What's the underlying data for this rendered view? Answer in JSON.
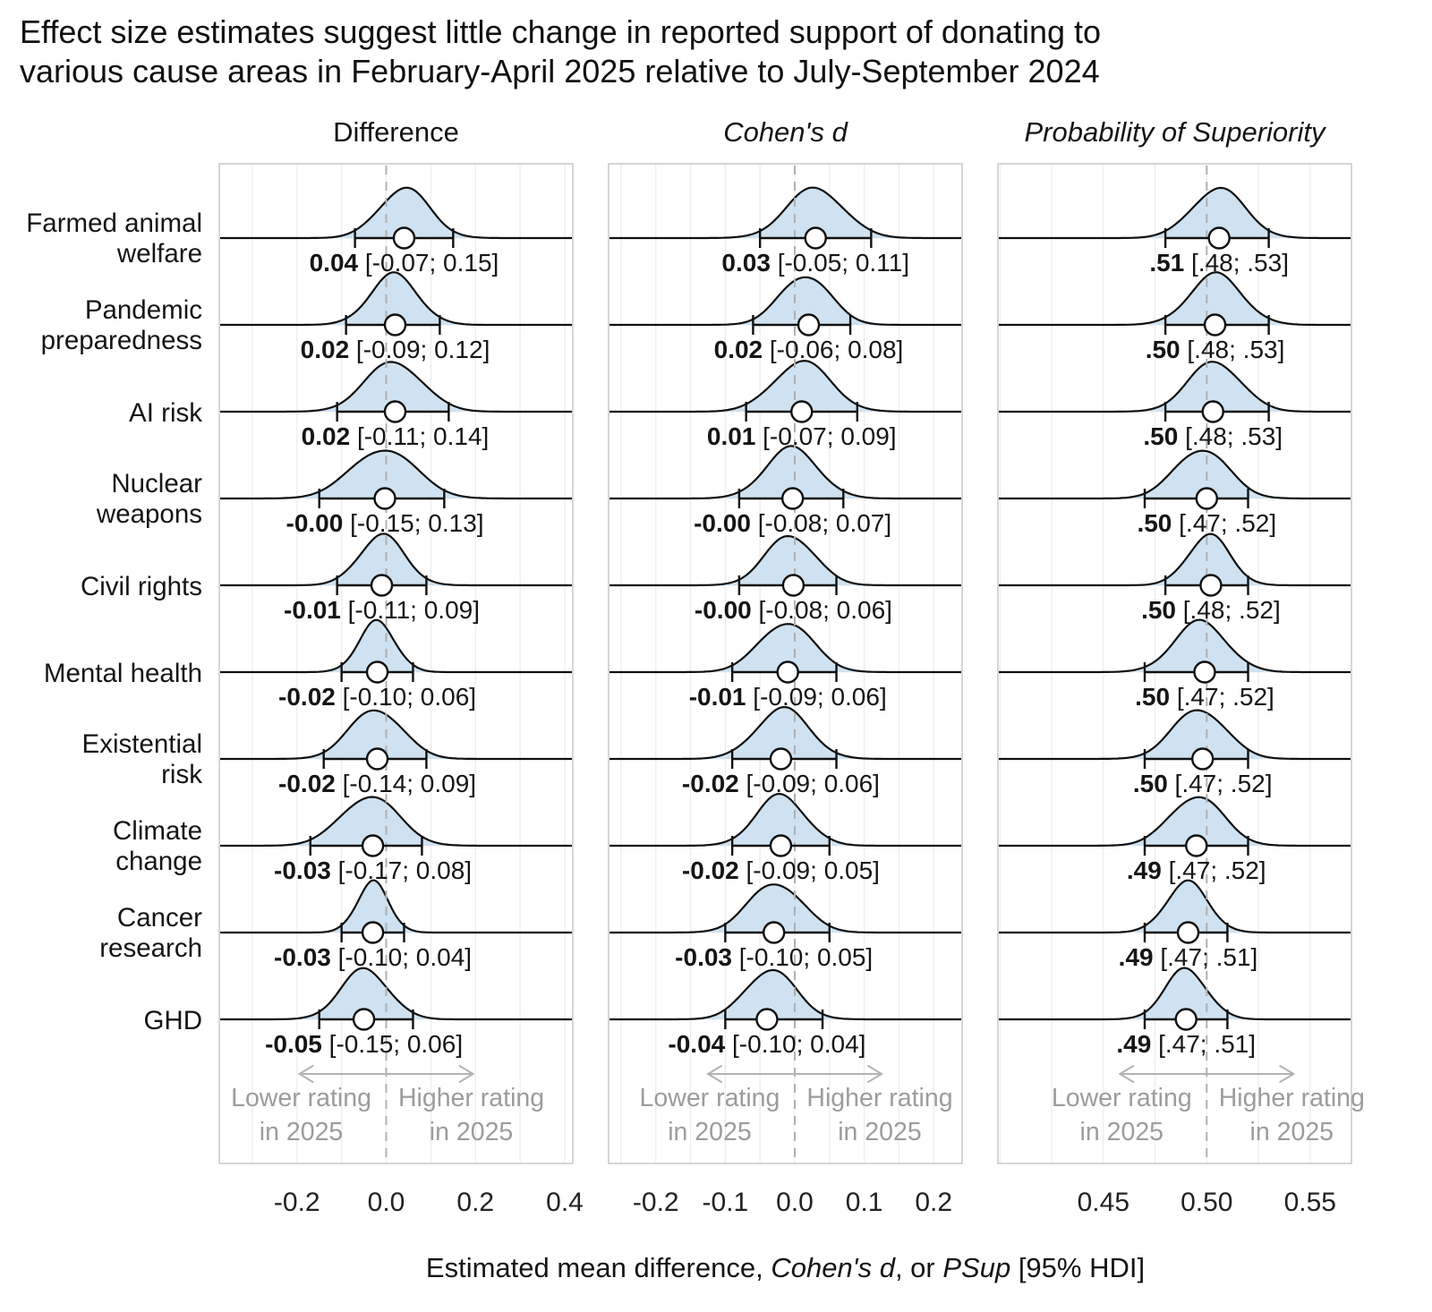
{
  "title": "Effect size estimates suggest little change in reported support of donating to\nvarious cause areas in February-April 2025 relative to July-September 2024",
  "colors": {
    "density_fill": "#cfe2f1",
    "density_stroke": "#101010",
    "panel_border": "#c9c9c9",
    "grid_vertical": "#ececec",
    "grid_horizontal": "#f1f1f1",
    "zero_dash": "#b0b0b0",
    "annotation_gray": "#9c9c9c",
    "arrow_gray": "#b3b3b3",
    "text_black": "#151515"
  },
  "annotations": {
    "left_line1": "Lower rating",
    "left_line2": "in 2025",
    "right_line1": "Higher rating",
    "right_line2": "in 2025"
  },
  "xlabel_parts": [
    {
      "text": "Estimated mean difference, ",
      "italic": false
    },
    {
      "text": "Cohen's d",
      "italic": true
    },
    {
      "text": ", or ",
      "italic": false
    },
    {
      "text": "PSup",
      "italic": true
    },
    {
      "text": " [95% HDI]",
      "italic": false
    }
  ],
  "chart_data": {
    "type": "ridgeline-forest",
    "categories": [
      "Farmed animal welfare",
      "Pandemic preparedness",
      "AI risk",
      "Nuclear weapons",
      "Civil rights",
      "Mental health",
      "Existential risk",
      "Climate change",
      "Cancer research",
      "GHD"
    ],
    "category_display": [
      "Farmed animal\nwelfare",
      "Pandemic\npreparedness",
      "AI risk",
      "Nuclear\nweapons",
      "Civil rights",
      "Mental health",
      "Existential\nrisk",
      "Climate\nchange",
      "Cancer\nresearch",
      "GHD"
    ],
    "panels": [
      {
        "title": "Difference",
        "italic": false,
        "domain": [
          -0.374,
          0.418
        ],
        "ticks": [
          -0.2,
          0.0,
          0.2,
          0.4
        ],
        "tick_labels": [
          "-0.2",
          "0.0",
          "0.2",
          "0.4"
        ],
        "zero": 0.0,
        "grid_step": 0.1,
        "values": [
          {
            "est": 0.04,
            "lo": -0.07,
            "hi": 0.15,
            "est_label": "0.04",
            "interval_label": "[-0.07; 0.15]"
          },
          {
            "est": 0.02,
            "lo": -0.09,
            "hi": 0.12,
            "est_label": "0.02",
            "interval_label": "[-0.09; 0.12]"
          },
          {
            "est": 0.02,
            "lo": -0.11,
            "hi": 0.14,
            "est_label": "0.02",
            "interval_label": "[-0.11; 0.14]"
          },
          {
            "est": -0.003,
            "lo": -0.15,
            "hi": 0.13,
            "est_label": "-0.00",
            "interval_label": "[-0.15; 0.13]"
          },
          {
            "est": -0.01,
            "lo": -0.11,
            "hi": 0.09,
            "est_label": "-0.01",
            "interval_label": "[-0.11; 0.09]"
          },
          {
            "est": -0.02,
            "lo": -0.1,
            "hi": 0.06,
            "est_label": "-0.02",
            "interval_label": "[-0.10; 0.06]"
          },
          {
            "est": -0.02,
            "lo": -0.14,
            "hi": 0.09,
            "est_label": "-0.02",
            "interval_label": "[-0.14; 0.09]"
          },
          {
            "est": -0.03,
            "lo": -0.17,
            "hi": 0.08,
            "est_label": "-0.03",
            "interval_label": "[-0.17; 0.08]"
          },
          {
            "est": -0.03,
            "lo": -0.1,
            "hi": 0.04,
            "est_label": "-0.03",
            "interval_label": "[-0.10; 0.04]"
          },
          {
            "est": -0.05,
            "lo": -0.15,
            "hi": 0.06,
            "est_label": "-0.05",
            "interval_label": "[-0.15; 0.06]"
          }
        ]
      },
      {
        "title": "Cohen's d",
        "italic": true,
        "domain": [
          -0.268,
          0.241
        ],
        "ticks": [
          -0.2,
          -0.1,
          0.0,
          0.1,
          0.2
        ],
        "tick_labels": [
          "-0.2",
          "-0.1",
          "0.0",
          "0.1",
          "0.2"
        ],
        "zero": 0.0,
        "grid_step": 0.05,
        "values": [
          {
            "est": 0.03,
            "lo": -0.05,
            "hi": 0.11,
            "est_label": "0.03",
            "interval_label": "[-0.05; 0.11]"
          },
          {
            "est": 0.02,
            "lo": -0.06,
            "hi": 0.08,
            "est_label": "0.02",
            "interval_label": "[-0.06; 0.08]"
          },
          {
            "est": 0.01,
            "lo": -0.07,
            "hi": 0.09,
            "est_label": "0.01",
            "interval_label": "[-0.07; 0.09]"
          },
          {
            "est": -0.003,
            "lo": -0.08,
            "hi": 0.07,
            "est_label": "-0.00",
            "interval_label": "[-0.08; 0.07]"
          },
          {
            "est": -0.002,
            "lo": -0.08,
            "hi": 0.06,
            "est_label": "-0.00",
            "interval_label": "[-0.08; 0.06]"
          },
          {
            "est": -0.01,
            "lo": -0.09,
            "hi": 0.06,
            "est_label": "-0.01",
            "interval_label": "[-0.09; 0.06]"
          },
          {
            "est": -0.02,
            "lo": -0.09,
            "hi": 0.06,
            "est_label": "-0.02",
            "interval_label": "[-0.09; 0.06]"
          },
          {
            "est": -0.02,
            "lo": -0.09,
            "hi": 0.05,
            "est_label": "-0.02",
            "interval_label": "[-0.09; 0.05]"
          },
          {
            "est": -0.03,
            "lo": -0.1,
            "hi": 0.05,
            "est_label": "-0.03",
            "interval_label": "[-0.10; 0.05]"
          },
          {
            "est": -0.04,
            "lo": -0.1,
            "hi": 0.04,
            "est_label": "-0.04",
            "interval_label": "[-0.10; 0.04]"
          }
        ]
      },
      {
        "title": "Probability of Superiority",
        "italic": true,
        "domain": [
          0.399,
          0.57
        ],
        "ticks": [
          0.45,
          0.5,
          0.55
        ],
        "tick_labels": [
          "0.45",
          "0.50",
          "0.55"
        ],
        "zero": 0.5,
        "grid_step": 0.025,
        "values": [
          {
            "est": 0.506,
            "lo": 0.48,
            "hi": 0.53,
            "est_label": ".51",
            "interval_label": "[.48; .53]"
          },
          {
            "est": 0.504,
            "lo": 0.48,
            "hi": 0.53,
            "est_label": ".50",
            "interval_label": "[.48; .53]"
          },
          {
            "est": 0.503,
            "lo": 0.48,
            "hi": 0.53,
            "est_label": ".50",
            "interval_label": "[.48; .53]"
          },
          {
            "est": 0.5,
            "lo": 0.47,
            "hi": 0.52,
            "est_label": ".50",
            "interval_label": "[.47; .52]"
          },
          {
            "est": 0.502,
            "lo": 0.48,
            "hi": 0.52,
            "est_label": ".50",
            "interval_label": "[.48; .52]"
          },
          {
            "est": 0.499,
            "lo": 0.47,
            "hi": 0.52,
            "est_label": ".50",
            "interval_label": "[.47; .52]"
          },
          {
            "est": 0.498,
            "lo": 0.47,
            "hi": 0.52,
            "est_label": ".50",
            "interval_label": "[.47; .52]"
          },
          {
            "est": 0.495,
            "lo": 0.47,
            "hi": 0.52,
            "est_label": ".49",
            "interval_label": "[.47; .52]"
          },
          {
            "est": 0.491,
            "lo": 0.47,
            "hi": 0.51,
            "est_label": ".49",
            "interval_label": "[.47; .51]"
          },
          {
            "est": 0.49,
            "lo": 0.47,
            "hi": 0.51,
            "est_label": ".49",
            "interval_label": "[.47; .51]"
          }
        ]
      }
    ]
  }
}
